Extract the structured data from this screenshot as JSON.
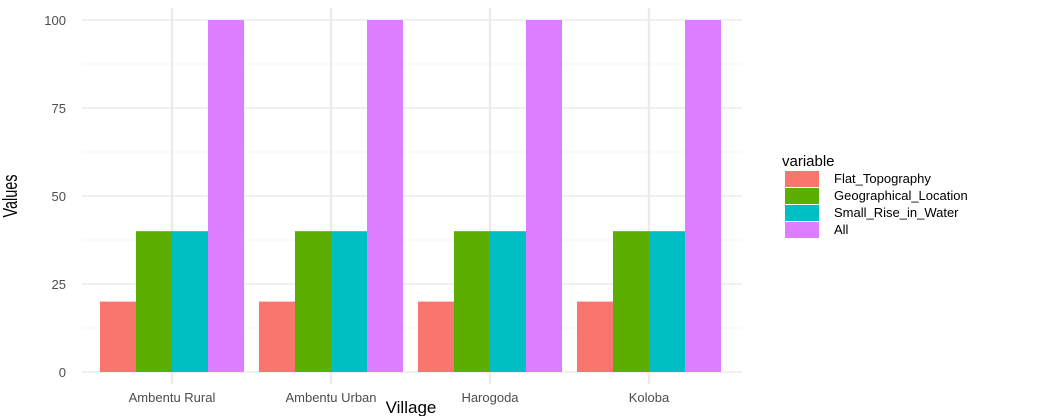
{
  "chart_data": {
    "type": "bar",
    "title": "",
    "xlabel": "Village",
    "ylabel": "Values",
    "categories": [
      "Ambentu Rural",
      "Ambentu Urban",
      "Harogoda",
      "Koloba"
    ],
    "series": [
      {
        "name": "Flat_Topography",
        "color": "#F8766D",
        "values": [
          20,
          20,
          20,
          20
        ]
      },
      {
        "name": "Geographical_Location",
        "color": "#5CAF00",
        "values": [
          40,
          40,
          40,
          40
        ]
      },
      {
        "name": "Small_Rise_in_Water",
        "color": "#00BFC4",
        "values": [
          40,
          40,
          40,
          40
        ]
      },
      {
        "name": "All",
        "color": "#DC7EFF",
        "values": [
          100,
          100,
          100,
          100
        ]
      }
    ],
    "ylim": [
      0,
      100
    ],
    "yticks": [
      "0",
      "25",
      "50",
      "75",
      "100"
    ],
    "grid": true,
    "legend": {
      "title": "variable",
      "placement": "right"
    }
  }
}
